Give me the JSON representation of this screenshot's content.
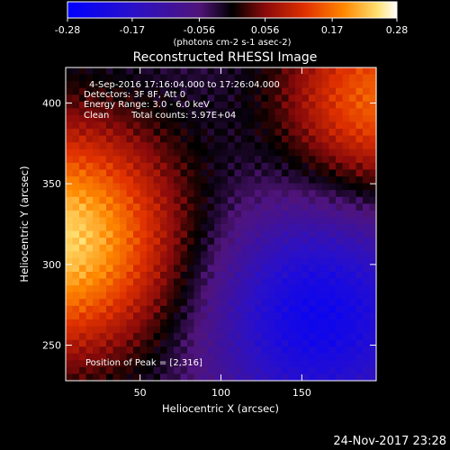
{
  "chart_data": {
    "type": "heatmap",
    "title": "Reconstructed RHESSI Image",
    "xlabel": "Heliocentric X (arcsec)",
    "ylabel": "Heliocentric Y (arcsec)",
    "xlim": [
      4,
      196
    ],
    "ylim": [
      228,
      422
    ],
    "x_ticks": [
      50,
      100,
      150
    ],
    "y_ticks": [
      250,
      300,
      350,
      400
    ],
    "colorbar": {
      "ticks": [
        "-0.28",
        "-0.17",
        "-0.056",
        "0.056",
        "0.17",
        "0.28"
      ],
      "range": [
        -0.28,
        0.28
      ],
      "unit_label": "(photons cm-2 s-1 asec-2)"
    },
    "annotations": {
      "time": "4-Sep-2016 17:16:04.000 to 17:26:04.000",
      "detectors": "Detectors: 3F 8F, Att 0",
      "energy": "Energy Range: 3.0 - 6.0 keV",
      "method": "Clean",
      "counts": "Total counts: 5.97E+04",
      "peak": "Position of Peak = [2,316]"
    },
    "sources": [
      {
        "x": 2,
        "y": 316,
        "peak": 0.28
      },
      {
        "x": 196,
        "y": 402,
        "peak": 0.2
      }
    ],
    "negative_region": {
      "x": 160,
      "y": 268,
      "value": -0.2
    },
    "timestamp": "24-Nov-2017 23:28"
  }
}
